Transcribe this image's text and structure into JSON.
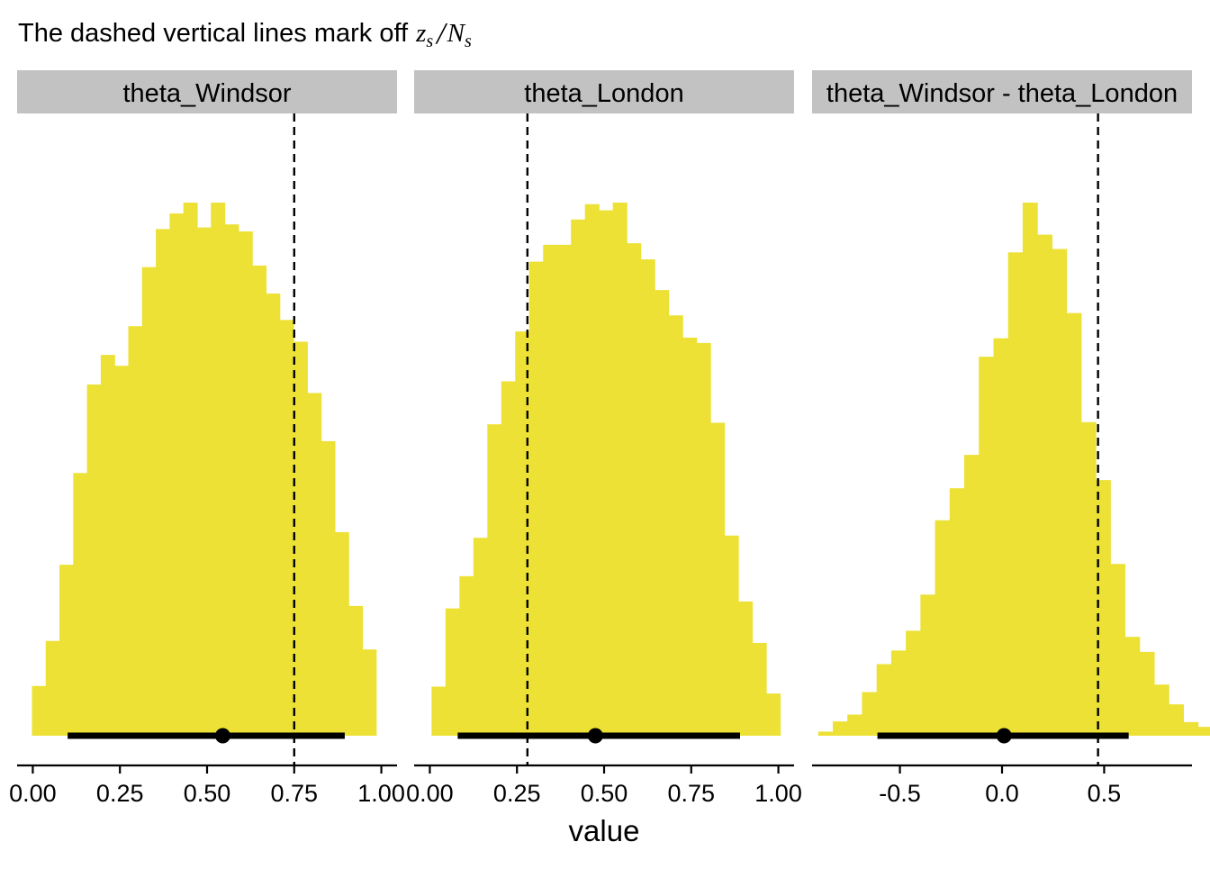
{
  "title": "The dashed vertical lines mark off",
  "title_math": {
    "z": "z",
    "sub": "s",
    "slash": "/",
    "N": "N"
  },
  "colors": {
    "fill": "#ECE134",
    "strip": "#C2C2C2",
    "line": "#000000",
    "axis": "#000000"
  },
  "chart_data": {
    "type": "bar",
    "xlabel": "value",
    "facets": [
      {
        "label": "theta_Windsor",
        "xlim": [
          -0.045,
          1.045
        ],
        "xticks": [
          0,
          0.25,
          0.5,
          0.75,
          1
        ],
        "xtick_labels": [
          "0.00",
          "0.25",
          "0.50",
          "0.75",
          "1.00"
        ],
        "dashed_line": 0.75,
        "bin_start": -0.0025,
        "bin_width": 0.0395,
        "counts": [
          64,
          122,
          220,
          338,
          452,
          490,
          476,
          527,
          603,
          652,
          672,
          686,
          654,
          686,
          658,
          649,
          605,
          569,
          535,
          507,
          441,
          379,
          262,
          167,
          111
        ],
        "interval": [
          0.1,
          0.895
        ],
        "point": 0.545
      },
      {
        "label": "theta_London",
        "xlim": [
          -0.045,
          1.045
        ],
        "xticks": [
          0,
          0.25,
          0.5,
          0.75,
          1
        ],
        "xtick_labels": [
          "0.00",
          "0.25",
          "0.50",
          "0.75",
          "1.00"
        ],
        "dashed_line": 0.28,
        "bin_start": 0.005,
        "bin_width": 0.04,
        "counts": [
          64,
          166,
          208,
          258,
          406,
          462,
          527,
          618,
          640,
          640,
          673,
          693,
          685,
          695,
          642,
          621,
          581,
          548,
          519,
          512,
          408,
          261,
          175,
          121,
          55
        ],
        "interval": [
          0.08,
          0.89
        ],
        "point": 0.475
      },
      {
        "label": "theta_Windsor - theta_London",
        "xlim": [
          -0.93,
          0.93
        ],
        "xticks": [
          -0.5,
          0,
          0.5
        ],
        "xtick_labels": [
          "-0.5",
          "0.0",
          "0.5"
        ],
        "dashed_line": 0.47,
        "bin_start": -0.9,
        "bin_width": 0.0715,
        "counts": [
          6,
          21,
          31,
          64,
          105,
          125,
          154,
          207,
          316,
          363,
          412,
          556,
          583,
          709,
          782,
          735,
          714,
          620,
          460,
          375,
          252,
          145,
          123,
          75,
          46,
          20,
          13
        ],
        "interval": [
          -0.61,
          0.62
        ],
        "point": 0.01
      }
    ]
  }
}
